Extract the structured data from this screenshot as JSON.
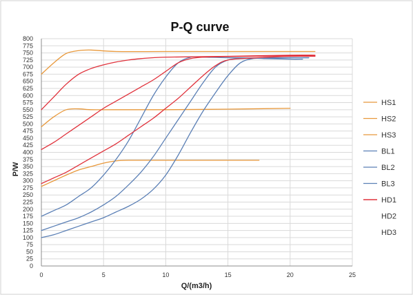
{
  "chart_data": {
    "type": "line",
    "title": "P-Q  curve",
    "xlabel": "Q/(m3/h)",
    "ylabel": "P/W",
    "xlim": [
      0,
      25
    ],
    "ylim": [
      0,
      800
    ],
    "xticks": [
      0,
      5,
      10,
      15,
      20,
      25
    ],
    "yticks": [
      0,
      25,
      50,
      75,
      100,
      125,
      150,
      175,
      200,
      225,
      250,
      275,
      300,
      325,
      350,
      375,
      400,
      425,
      450,
      475,
      500,
      525,
      550,
      575,
      600,
      625,
      650,
      675,
      700,
      725,
      750,
      775,
      800
    ],
    "grid": "horizontal and vertical major gridlines",
    "legend_position": "right",
    "series": [
      {
        "name": "HS1",
        "color": "#e8983a",
        "points": [
          [
            0,
            675
          ],
          [
            1,
            715
          ],
          [
            2,
            748
          ],
          [
            3,
            758
          ],
          [
            4,
            760
          ],
          [
            6,
            755
          ],
          [
            10,
            755
          ],
          [
            15,
            755
          ],
          [
            20,
            755
          ],
          [
            22,
            755
          ]
        ]
      },
      {
        "name": "HS2",
        "color": "#e8983a",
        "points": [
          [
            0,
            490
          ],
          [
            1,
            525
          ],
          [
            2,
            550
          ],
          [
            3,
            553
          ],
          [
            4,
            550
          ],
          [
            6,
            550
          ],
          [
            10,
            550
          ],
          [
            15,
            552
          ],
          [
            20,
            555
          ]
        ]
      },
      {
        "name": "HS3",
        "color": "#e8983a",
        "points": [
          [
            0,
            280
          ],
          [
            1,
            300
          ],
          [
            2,
            320
          ],
          [
            3,
            338
          ],
          [
            4,
            350
          ],
          [
            5,
            362
          ],
          [
            6,
            370
          ],
          [
            7,
            372
          ],
          [
            10,
            372
          ],
          [
            15,
            372
          ],
          [
            17.5,
            372
          ]
        ]
      },
      {
        "name": "BL1",
        "color": "#5a7fb5",
        "points": [
          [
            0,
            175
          ],
          [
            1,
            195
          ],
          [
            2,
            215
          ],
          [
            3,
            245
          ],
          [
            4,
            275
          ],
          [
            5,
            320
          ],
          [
            6,
            375
          ],
          [
            7,
            440
          ],
          [
            8,
            520
          ],
          [
            9,
            600
          ],
          [
            10,
            665
          ],
          [
            11,
            715
          ],
          [
            12,
            735
          ],
          [
            13,
            735
          ],
          [
            15,
            733
          ],
          [
            18,
            732
          ],
          [
            20,
            733
          ],
          [
            21.5,
            733
          ]
        ]
      },
      {
        "name": "BL2",
        "color": "#5a7fb5",
        "points": [
          [
            0,
            125
          ],
          [
            1,
            140
          ],
          [
            2,
            155
          ],
          [
            3,
            170
          ],
          [
            4,
            190
          ],
          [
            5,
            215
          ],
          [
            6,
            245
          ],
          [
            7,
            285
          ],
          [
            8,
            330
          ],
          [
            9,
            385
          ],
          [
            10,
            450
          ],
          [
            11,
            515
          ],
          [
            12,
            580
          ],
          [
            13,
            645
          ],
          [
            14,
            700
          ],
          [
            15,
            725
          ],
          [
            16,
            730
          ],
          [
            18,
            732
          ],
          [
            20,
            733
          ],
          [
            21.5,
            733
          ]
        ]
      },
      {
        "name": "BL3",
        "color": "#5a7fb5",
        "points": [
          [
            0,
            100
          ],
          [
            1,
            110
          ],
          [
            2,
            125
          ],
          [
            3,
            140
          ],
          [
            4,
            155
          ],
          [
            5,
            170
          ],
          [
            6,
            190
          ],
          [
            7,
            210
          ],
          [
            8,
            235
          ],
          [
            9,
            270
          ],
          [
            10,
            320
          ],
          [
            11,
            390
          ],
          [
            12,
            470
          ],
          [
            13,
            545
          ],
          [
            14,
            610
          ],
          [
            15,
            670
          ],
          [
            16,
            715
          ],
          [
            17,
            730
          ],
          [
            18,
            730
          ],
          [
            20,
            728
          ],
          [
            21,
            728
          ]
        ]
      },
      {
        "name": "HD1",
        "color": "#e0303a",
        "points": [
          [
            0,
            550
          ],
          [
            1,
            595
          ],
          [
            2,
            640
          ],
          [
            3,
            675
          ],
          [
            4,
            695
          ],
          [
            5,
            708
          ],
          [
            6,
            718
          ],
          [
            7,
            725
          ],
          [
            8,
            730
          ],
          [
            10,
            735
          ],
          [
            15,
            738
          ],
          [
            20,
            742
          ],
          [
            22,
            742
          ]
        ]
      },
      {
        "name": "HD2",
        "color": "#e0303a",
        "points": [
          [
            0,
            410
          ],
          [
            1,
            435
          ],
          [
            2,
            465
          ],
          [
            3,
            495
          ],
          [
            4,
            525
          ],
          [
            5,
            555
          ],
          [
            6,
            580
          ],
          [
            7,
            605
          ],
          [
            8,
            630
          ],
          [
            9,
            655
          ],
          [
            10,
            685
          ],
          [
            11,
            715
          ],
          [
            12,
            730
          ],
          [
            13,
            735
          ],
          [
            15,
            737
          ],
          [
            20,
            740
          ],
          [
            22,
            740
          ]
        ]
      },
      {
        "name": "HD3",
        "color": "#e0303a",
        "points": [
          [
            0,
            290
          ],
          [
            1,
            310
          ],
          [
            2,
            330
          ],
          [
            3,
            355
          ],
          [
            4,
            380
          ],
          [
            5,
            405
          ],
          [
            6,
            430
          ],
          [
            7,
            460
          ],
          [
            8,
            490
          ],
          [
            9,
            520
          ],
          [
            10,
            555
          ],
          [
            11,
            590
          ],
          [
            12,
            630
          ],
          [
            13,
            670
          ],
          [
            14,
            705
          ],
          [
            15,
            725
          ],
          [
            17,
            732
          ],
          [
            20,
            738
          ],
          [
            22,
            738
          ]
        ]
      }
    ]
  }
}
